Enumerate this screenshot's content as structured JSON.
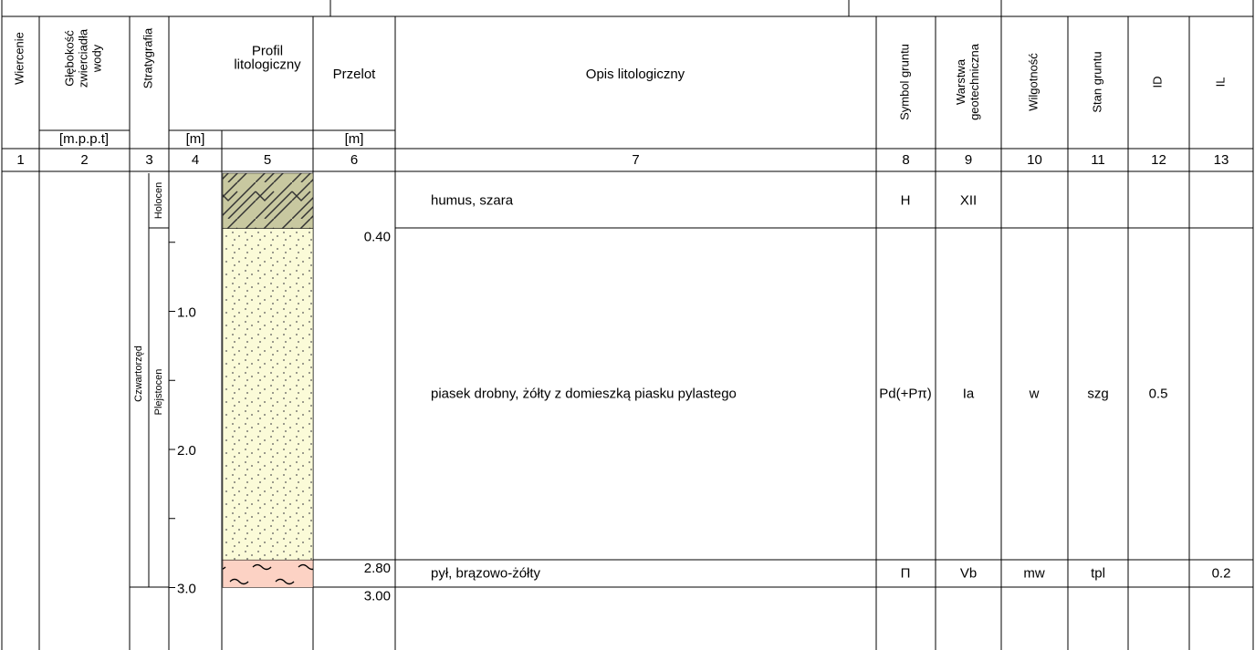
{
  "headers": [
    [
      "Wiercenie"
    ],
    [
      "Głębokość",
      "zwierciadła",
      "wody"
    ],
    [
      "Stratygrafia"
    ],
    [
      "Profil",
      "litologiczny"
    ],
    [
      "Przelot"
    ],
    [
      "Opis litologiczny"
    ],
    [
      "Symbol gruntu"
    ],
    [
      "Warstwa",
      "geotechniczna"
    ],
    [
      "Wilgotność"
    ],
    [
      "Stan gruntu"
    ],
    [
      "ID"
    ],
    [
      "IL"
    ]
  ],
  "units": [
    "[m.p.p.t]",
    "[m]",
    "[m]"
  ],
  "column_numbers": [
    "1",
    "2",
    "3",
    "4",
    "5",
    "6",
    "7",
    "8",
    "9",
    "10",
    "11",
    "12",
    "13"
  ],
  "stratigraphy": {
    "era": "Czwartorzęd",
    "epochs": [
      "Holocen",
      "Plejstocen"
    ]
  },
  "depth_ticks": [
    "1.0",
    "2.0",
    "3.0"
  ],
  "depth_labels": [
    "0.40",
    "2.80",
    "3.00"
  ],
  "layers": [
    {
      "description": "humus, szara",
      "symbol": "H",
      "layer": "XII"
    },
    {
      "description": "piasek drobny, żółty z domieszką piasku pylastego",
      "symbol": "Pd(+Pπ)",
      "layer": "Ia",
      "moisture": "w",
      "state": "szg",
      "id": "0.5"
    },
    {
      "description": "pył, brązowo-żółty",
      "symbol": "Π",
      "layer": "Vb",
      "moisture": "mw",
      "state": "tpl",
      "il": "0.2"
    }
  ]
}
